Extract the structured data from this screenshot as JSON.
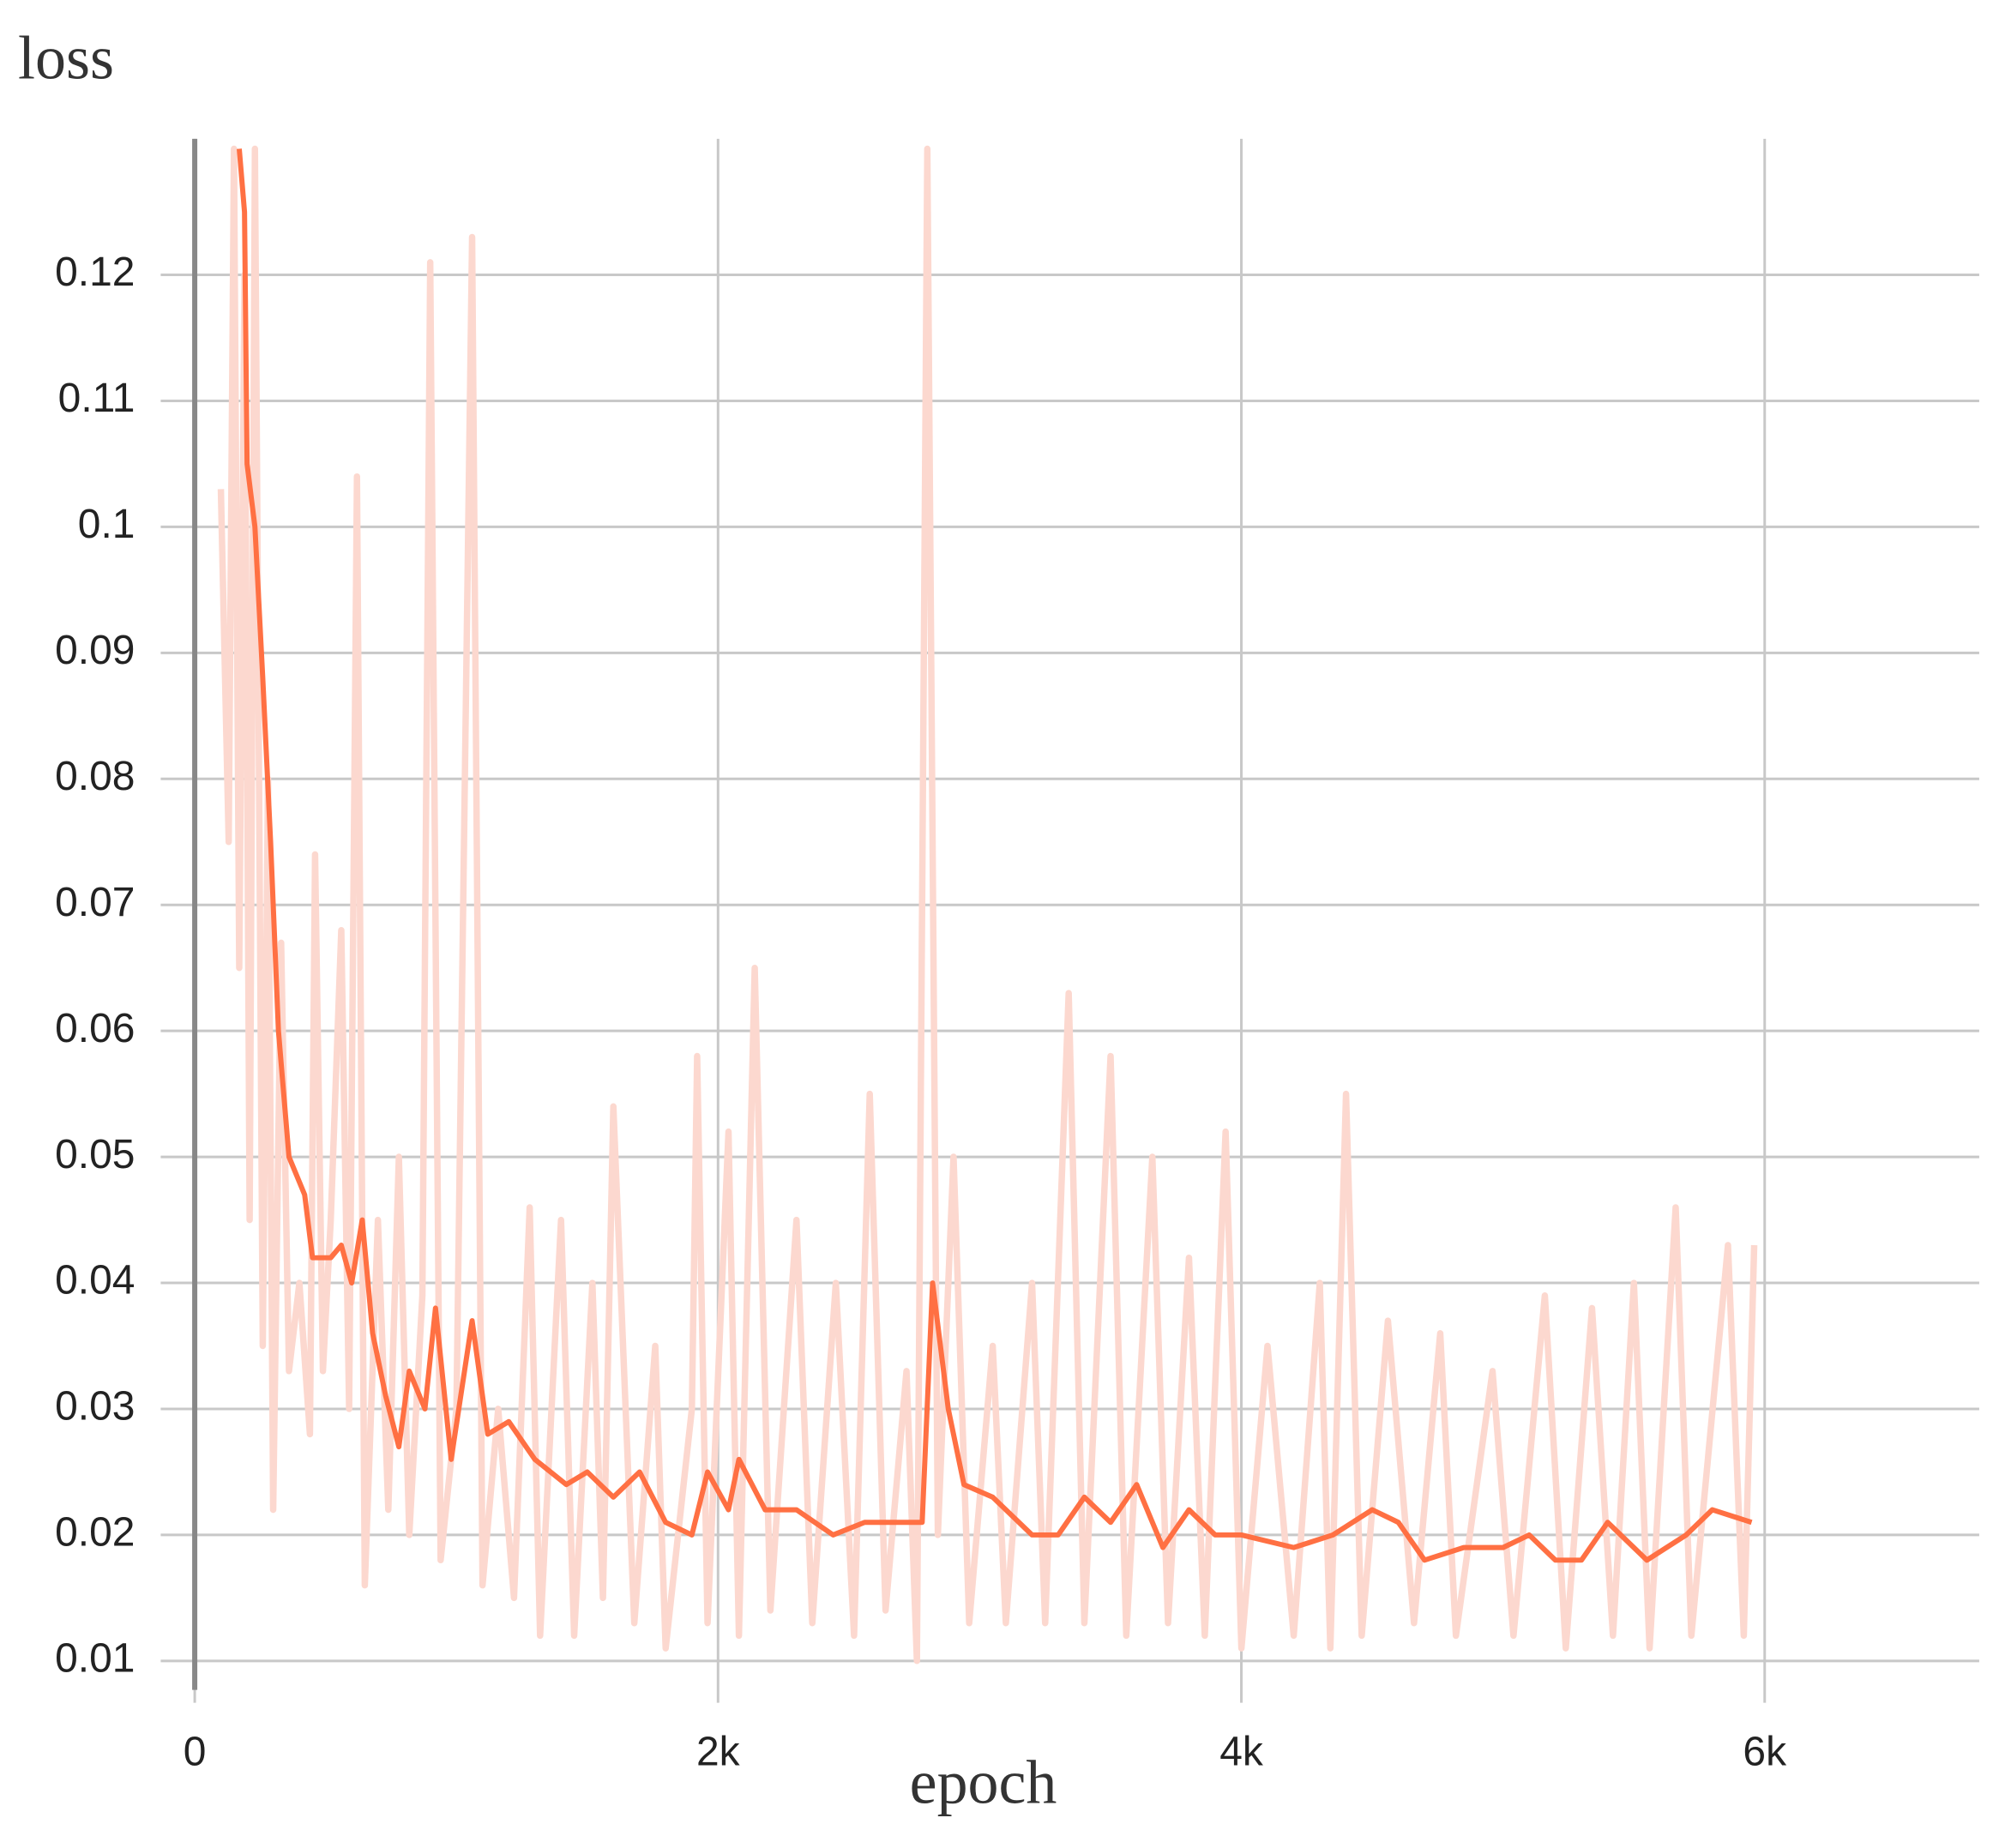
{
  "chart_data": {
    "type": "line",
    "title": "loss",
    "xlabel": "epoch",
    "series": [
      {
        "color": "#fcd8cf",
        "x": [
          100,
          130,
          150,
          170,
          190,
          210,
          230,
          260,
          280,
          300,
          330,
          360,
          400,
          440,
          460,
          490,
          520,
          560,
          590,
          620,
          650,
          700,
          740,
          780,
          820,
          870,
          900,
          940,
          1000,
          1060,
          1100,
          1160,
          1220,
          1280,
          1320,
          1400,
          1450,
          1520,
          1560,
          1600,
          1680,
          1760,
          1800,
          1900,
          1920,
          1960,
          2040,
          2080,
          2140,
          2200,
          2300,
          2360,
          2450,
          2520,
          2580,
          2640,
          2720,
          2760,
          2800,
          2840,
          2900,
          2960,
          3050,
          3100,
          3200,
          3250,
          3340,
          3400,
          3500,
          3560,
          3660,
          3720,
          3800,
          3860,
          3940,
          4000,
          4100,
          4200,
          4300,
          4340,
          4400,
          4460,
          4560,
          4660,
          4760,
          4820,
          4960,
          5040,
          5160,
          5240,
          5340,
          5420,
          5500,
          5560,
          5660,
          5720,
          5860,
          5920,
          5960
        ],
        "values": [
          0.103,
          0.075,
          0.13,
          0.065,
          0.12,
          0.045,
          0.13,
          0.035,
          0.08,
          0.022,
          0.067,
          0.033,
          0.04,
          0.028,
          0.074,
          0.033,
          0.045,
          0.068,
          0.03,
          0.104,
          0.016,
          0.045,
          0.022,
          0.05,
          0.02,
          0.039,
          0.121,
          0.018,
          0.03,
          0.123,
          0.016,
          0.03,
          0.015,
          0.046,
          0.012,
          0.045,
          0.012,
          0.04,
          0.015,
          0.054,
          0.013,
          0.035,
          0.011,
          0.03,
          0.058,
          0.013,
          0.052,
          0.012,
          0.065,
          0.014,
          0.045,
          0.013,
          0.04,
          0.012,
          0.055,
          0.014,
          0.033,
          0.01,
          0.13,
          0.02,
          0.05,
          0.013,
          0.035,
          0.013,
          0.04,
          0.013,
          0.063,
          0.013,
          0.058,
          0.012,
          0.05,
          0.013,
          0.042,
          0.012,
          0.052,
          0.011,
          0.035,
          0.012,
          0.04,
          0.011,
          0.055,
          0.012,
          0.037,
          0.013,
          0.036,
          0.012,
          0.033,
          0.012,
          0.039,
          0.011,
          0.038,
          0.012,
          0.04,
          0.011,
          0.046,
          0.012,
          0.043,
          0.012,
          0.043
        ]
      },
      {
        "color": "#ff7043",
        "x": [
          170,
          190,
          200,
          230,
          260,
          290,
          320,
          360,
          420,
          450,
          520,
          560,
          600,
          640,
          680,
          730,
          780,
          820,
          880,
          920,
          980,
          1060,
          1120,
          1200,
          1300,
          1420,
          1500,
          1600,
          1700,
          1800,
          1900,
          1960,
          2040,
          2080,
          2180,
          2300,
          2440,
          2560,
          2680,
          2780,
          2820,
          2880,
          2940,
          3050,
          3200,
          3300,
          3400,
          3500,
          3600,
          3700,
          3800,
          3900,
          4000,
          4200,
          4350,
          4500,
          4600,
          4700,
          4850,
          5000,
          5100,
          5200,
          5300,
          5400,
          5550,
          5700,
          5800,
          5950
        ],
        "values": [
          0.13,
          0.125,
          0.105,
          0.1,
          0.088,
          0.075,
          0.06,
          0.05,
          0.047,
          0.042,
          0.042,
          0.043,
          0.04,
          0.045,
          0.036,
          0.031,
          0.027,
          0.033,
          0.03,
          0.038,
          0.026,
          0.037,
          0.028,
          0.029,
          0.026,
          0.024,
          0.025,
          0.023,
          0.025,
          0.021,
          0.02,
          0.025,
          0.022,
          0.026,
          0.022,
          0.022,
          0.02,
          0.021,
          0.021,
          0.021,
          0.04,
          0.03,
          0.024,
          0.023,
          0.02,
          0.02,
          0.023,
          0.021,
          0.024,
          0.019,
          0.022,
          0.02,
          0.02,
          0.019,
          0.02,
          0.022,
          0.021,
          0.018,
          0.019,
          0.019,
          0.02,
          0.018,
          0.018,
          0.021,
          0.018,
          0.02,
          0.022,
          0.021
        ]
      }
    ],
    "xlim": [
      -130,
      6820
    ],
    "xticks": [
      0,
      {
        "value": 2000,
        "label": "2k"
      },
      {
        "value": 4000,
        "label": "4k"
      },
      {
        "value": 6000,
        "label": "6k"
      }
    ],
    "ylim": [
      0.0077,
      0.1308
    ],
    "yticks": [
      0.01,
      0.02,
      0.03,
      0.04,
      0.05,
      0.06,
      0.07,
      0.08,
      0.09,
      0.1,
      0.11,
      0.12
    ],
    "grid": true
  }
}
